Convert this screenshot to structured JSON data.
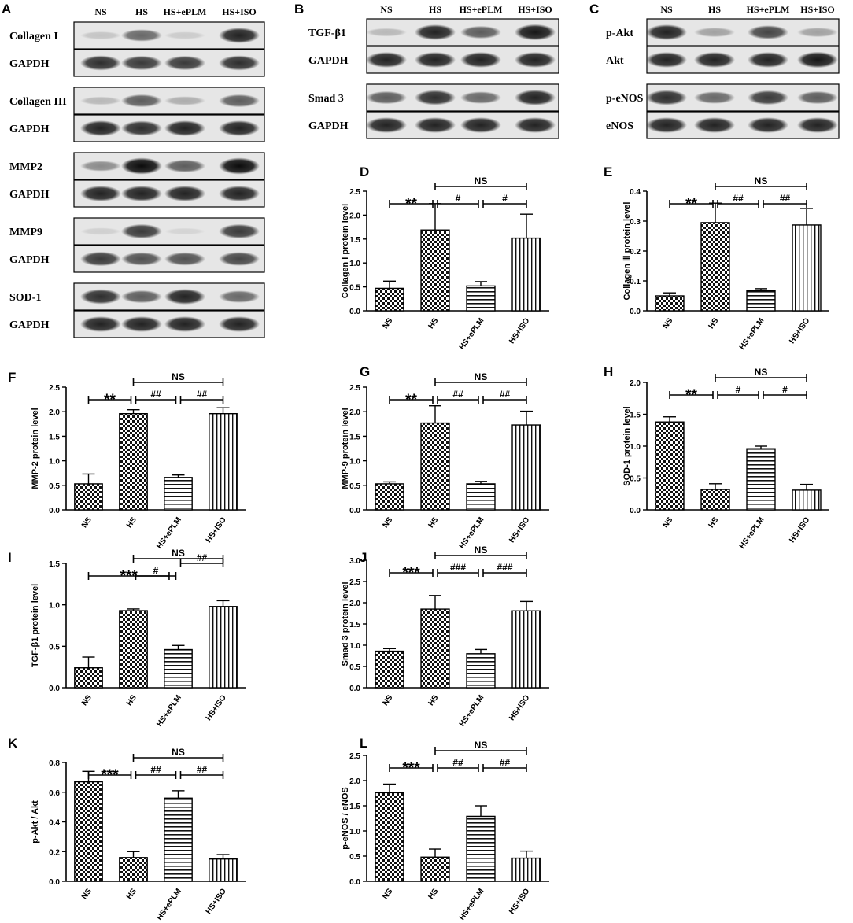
{
  "blots": [
    {
      "panel": "A",
      "lanes": [
        "NS",
        "HS",
        "HS+ePLM",
        "HS+ISO"
      ],
      "strips": [
        {
          "label": "Collagen I",
          "intensity": [
            0.15,
            0.55,
            0.12,
            0.85
          ]
        },
        {
          "label": "GAPDH",
          "intensity": [
            0.8,
            0.75,
            0.75,
            0.8
          ]
        },
        {
          "label": "Collagen III",
          "intensity": [
            0.2,
            0.6,
            0.25,
            0.6
          ]
        },
        {
          "label": "GAPDH",
          "intensity": [
            0.85,
            0.8,
            0.85,
            0.85
          ]
        },
        {
          "label": "MMP2",
          "intensity": [
            0.4,
            0.95,
            0.6,
            0.95
          ]
        },
        {
          "label": "GAPDH",
          "intensity": [
            0.85,
            0.85,
            0.85,
            0.85
          ]
        },
        {
          "label": "MMP9",
          "intensity": [
            0.1,
            0.75,
            0.05,
            0.75
          ]
        },
        {
          "label": "GAPDH",
          "intensity": [
            0.75,
            0.65,
            0.65,
            0.7
          ]
        },
        {
          "label": "SOD-1",
          "intensity": [
            0.8,
            0.6,
            0.85,
            0.55
          ]
        },
        {
          "label": "GAPDH",
          "intensity": [
            0.85,
            0.85,
            0.85,
            0.85
          ]
        }
      ]
    },
    {
      "panel": "B",
      "lanes": [
        "NS",
        "HS",
        "HS+ePLM",
        "HS+ISO"
      ],
      "strips": [
        {
          "label": "TGF-β1",
          "intensity": [
            0.2,
            0.85,
            0.6,
            0.9
          ]
        },
        {
          "label": "GAPDH",
          "intensity": [
            0.85,
            0.85,
            0.85,
            0.85
          ]
        },
        {
          "label": "Smad 3",
          "intensity": [
            0.6,
            0.8,
            0.55,
            0.85
          ]
        },
        {
          "label": "GAPDH",
          "intensity": [
            0.85,
            0.85,
            0.85,
            0.85
          ]
        }
      ]
    },
    {
      "panel": "C",
      "lanes": [
        "NS",
        "HS",
        "HS+ePLM",
        "HS+ISO"
      ],
      "strips": [
        {
          "label": "p-Akt",
          "intensity": [
            0.85,
            0.3,
            0.7,
            0.3
          ]
        },
        {
          "label": "Akt",
          "intensity": [
            0.85,
            0.85,
            0.85,
            0.9
          ]
        },
        {
          "label": "p-eNOS",
          "intensity": [
            0.8,
            0.55,
            0.75,
            0.6
          ]
        },
        {
          "label": "eNOS",
          "intensity": [
            0.85,
            0.85,
            0.85,
            0.85
          ]
        }
      ]
    }
  ],
  "blot_lane_headers": {
    "A": [
      "NS",
      "HS",
      "HS+ePLM",
      "HS+ISO"
    ],
    "B": [
      "NS",
      "HS",
      "HS+ePLM",
      "HS+ISO"
    ],
    "C": [
      "NS",
      "HS",
      "HS+ePLM",
      "HS+ISO"
    ]
  },
  "chart_data": [
    {
      "panel": "D",
      "type": "bar",
      "ylabel": "Collagen I protein level",
      "categories": [
        "NS",
        "HS",
        "HS+ePLM",
        "HS+ISO"
      ],
      "values": [
        0.47,
        1.69,
        0.52,
        1.52
      ],
      "errors": [
        0.15,
        0.55,
        0.09,
        0.5
      ],
      "ylim": [
        0,
        2.5
      ],
      "yticks": [
        0.0,
        0.5,
        1.0,
        1.5,
        2.0,
        2.5
      ],
      "annotations": [
        {
          "from": 0,
          "to": 1,
          "label": "**"
        },
        {
          "from": 1,
          "to": 2,
          "label": "#"
        },
        {
          "from": 2,
          "to": 3,
          "label": "#"
        },
        {
          "from": 1,
          "to": 3,
          "label": "NS"
        }
      ]
    },
    {
      "panel": "E",
      "type": "bar",
      "ylabel": "Collagen Ⅲ protein level",
      "categories": [
        "NS",
        "HS",
        "HS+ePLM",
        "HS+ISO"
      ],
      "values": [
        0.05,
        0.295,
        0.067,
        0.287
      ],
      "errors": [
        0.01,
        0.065,
        0.007,
        0.055
      ],
      "ylim": [
        0,
        0.4
      ],
      "yticks": [
        0.0,
        0.1,
        0.2,
        0.3,
        0.4
      ],
      "annotations": [
        {
          "from": 0,
          "to": 1,
          "label": "**"
        },
        {
          "from": 1,
          "to": 2,
          "label": "##"
        },
        {
          "from": 2,
          "to": 3,
          "label": "##"
        },
        {
          "from": 1,
          "to": 3,
          "label": "NS"
        }
      ]
    },
    {
      "panel": "F",
      "type": "bar",
      "ylabel": "MMP-2 protein level",
      "categories": [
        "NS",
        "HS",
        "HS+ePLM",
        "HS+ISO"
      ],
      "values": [
        0.53,
        1.96,
        0.66,
        1.96
      ],
      "errors": [
        0.2,
        0.08,
        0.05,
        0.12
      ],
      "ylim": [
        0,
        2.5
      ],
      "yticks": [
        0.0,
        0.5,
        1.0,
        1.5,
        2.0,
        2.5
      ],
      "annotations": [
        {
          "from": 0,
          "to": 1,
          "label": "**"
        },
        {
          "from": 1,
          "to": 2,
          "label": "##"
        },
        {
          "from": 2,
          "to": 3,
          "label": "##"
        },
        {
          "from": 1,
          "to": 3,
          "label": "NS"
        }
      ]
    },
    {
      "panel": "G",
      "type": "bar",
      "ylabel": "MMP-9 protein level",
      "categories": [
        "NS",
        "HS",
        "HS+ePLM",
        "HS+ISO"
      ],
      "values": [
        0.53,
        1.77,
        0.53,
        1.73
      ],
      "errors": [
        0.04,
        0.35,
        0.05,
        0.28
      ],
      "ylim": [
        0,
        2.5
      ],
      "yticks": [
        0.0,
        0.5,
        1.0,
        1.5,
        2.0,
        2.5
      ],
      "annotations": [
        {
          "from": 0,
          "to": 1,
          "label": "**"
        },
        {
          "from": 1,
          "to": 2,
          "label": "##"
        },
        {
          "from": 2,
          "to": 3,
          "label": "##"
        },
        {
          "from": 1,
          "to": 3,
          "label": "NS"
        }
      ]
    },
    {
      "panel": "H",
      "type": "bar",
      "ylabel": "SOD-1 protein level",
      "categories": [
        "NS",
        "HS",
        "HS+ePLM",
        "HS+ISO"
      ],
      "values": [
        1.38,
        0.32,
        0.96,
        0.31
      ],
      "errors": [
        0.08,
        0.09,
        0.04,
        0.09
      ],
      "ylim": [
        0,
        2.0
      ],
      "yticks": [
        0.0,
        0.5,
        1.0,
        1.5,
        2.0
      ],
      "annotations": [
        {
          "from": 0,
          "to": 1,
          "label": "**"
        },
        {
          "from": 1,
          "to": 2,
          "label": "#"
        },
        {
          "from": 2,
          "to": 3,
          "label": "#"
        },
        {
          "from": 1,
          "to": 3,
          "label": "NS"
        }
      ]
    },
    {
      "panel": "I",
      "type": "bar",
      "ylabel": "TGF-β1 protein level",
      "categories": [
        "NS",
        "HS",
        "HS+ePLM",
        "HS+ISO"
      ],
      "values": [
        0.24,
        0.93,
        0.46,
        0.98
      ],
      "errors": [
        0.13,
        0.02,
        0.05,
        0.07
      ],
      "ylim": [
        0,
        1.5
      ],
      "yticks": [
        0.0,
        0.5,
        1.0,
        1.5
      ],
      "annotations": [
        {
          "from": 0,
          "to": 2,
          "label": "***",
          "split": 1
        },
        {
          "from": 1,
          "to": 2,
          "label": "#"
        },
        {
          "from": 2,
          "to": 3,
          "label": "##",
          "raised": true
        },
        {
          "from": 1,
          "to": 3,
          "label": "NS"
        }
      ]
    },
    {
      "panel": "J",
      "type": "bar",
      "ylabel": "Smad 3 protein level",
      "categories": [
        "NS",
        "HS",
        "HS+ePLM",
        "HS+ISO"
      ],
      "values": [
        0.86,
        1.85,
        0.8,
        1.81
      ],
      "errors": [
        0.06,
        0.32,
        0.1,
        0.22
      ],
      "ylim": [
        0,
        3.0
      ],
      "yticks": [
        0.0,
        0.5,
        1.0,
        1.5,
        2.0,
        2.5,
        3.0
      ],
      "annotations": [
        {
          "from": 0,
          "to": 1,
          "label": "***"
        },
        {
          "from": 1,
          "to": 2,
          "label": "###"
        },
        {
          "from": 2,
          "to": 3,
          "label": "###"
        },
        {
          "from": 1,
          "to": 3,
          "label": "NS"
        }
      ]
    },
    {
      "panel": "K",
      "type": "bar",
      "ylabel": "p-Akt / Akt",
      "categories": [
        "NS",
        "HS",
        "HS+ePLM",
        "HS+ISO"
      ],
      "values": [
        0.67,
        0.16,
        0.56,
        0.15
      ],
      "errors": [
        0.07,
        0.04,
        0.05,
        0.03
      ],
      "ylim": [
        0,
        0.8
      ],
      "yticks": [
        0.0,
        0.2,
        0.4,
        0.6,
        0.8
      ],
      "annotations": [
        {
          "from": 0,
          "to": 1,
          "label": "***"
        },
        {
          "from": 1,
          "to": 2,
          "label": "##"
        },
        {
          "from": 2,
          "to": 3,
          "label": "##"
        },
        {
          "from": 1,
          "to": 3,
          "label": "NS"
        }
      ]
    },
    {
      "panel": "L",
      "type": "bar",
      "ylabel": "p-eNOS / eNOS",
      "categories": [
        "NS",
        "HS",
        "HS+ePLM",
        "HS+ISO"
      ],
      "values": [
        1.76,
        0.48,
        1.29,
        0.46
      ],
      "errors": [
        0.17,
        0.16,
        0.21,
        0.14
      ],
      "ylim": [
        0,
        2.5
      ],
      "yticks": [
        0.0,
        0.5,
        1.0,
        1.5,
        2.0,
        2.5
      ],
      "annotations": [
        {
          "from": 0,
          "to": 1,
          "label": "***"
        },
        {
          "from": 1,
          "to": 2,
          "label": "##"
        },
        {
          "from": 2,
          "to": 3,
          "label": "##"
        },
        {
          "from": 1,
          "to": 3,
          "label": "NS"
        }
      ]
    }
  ]
}
